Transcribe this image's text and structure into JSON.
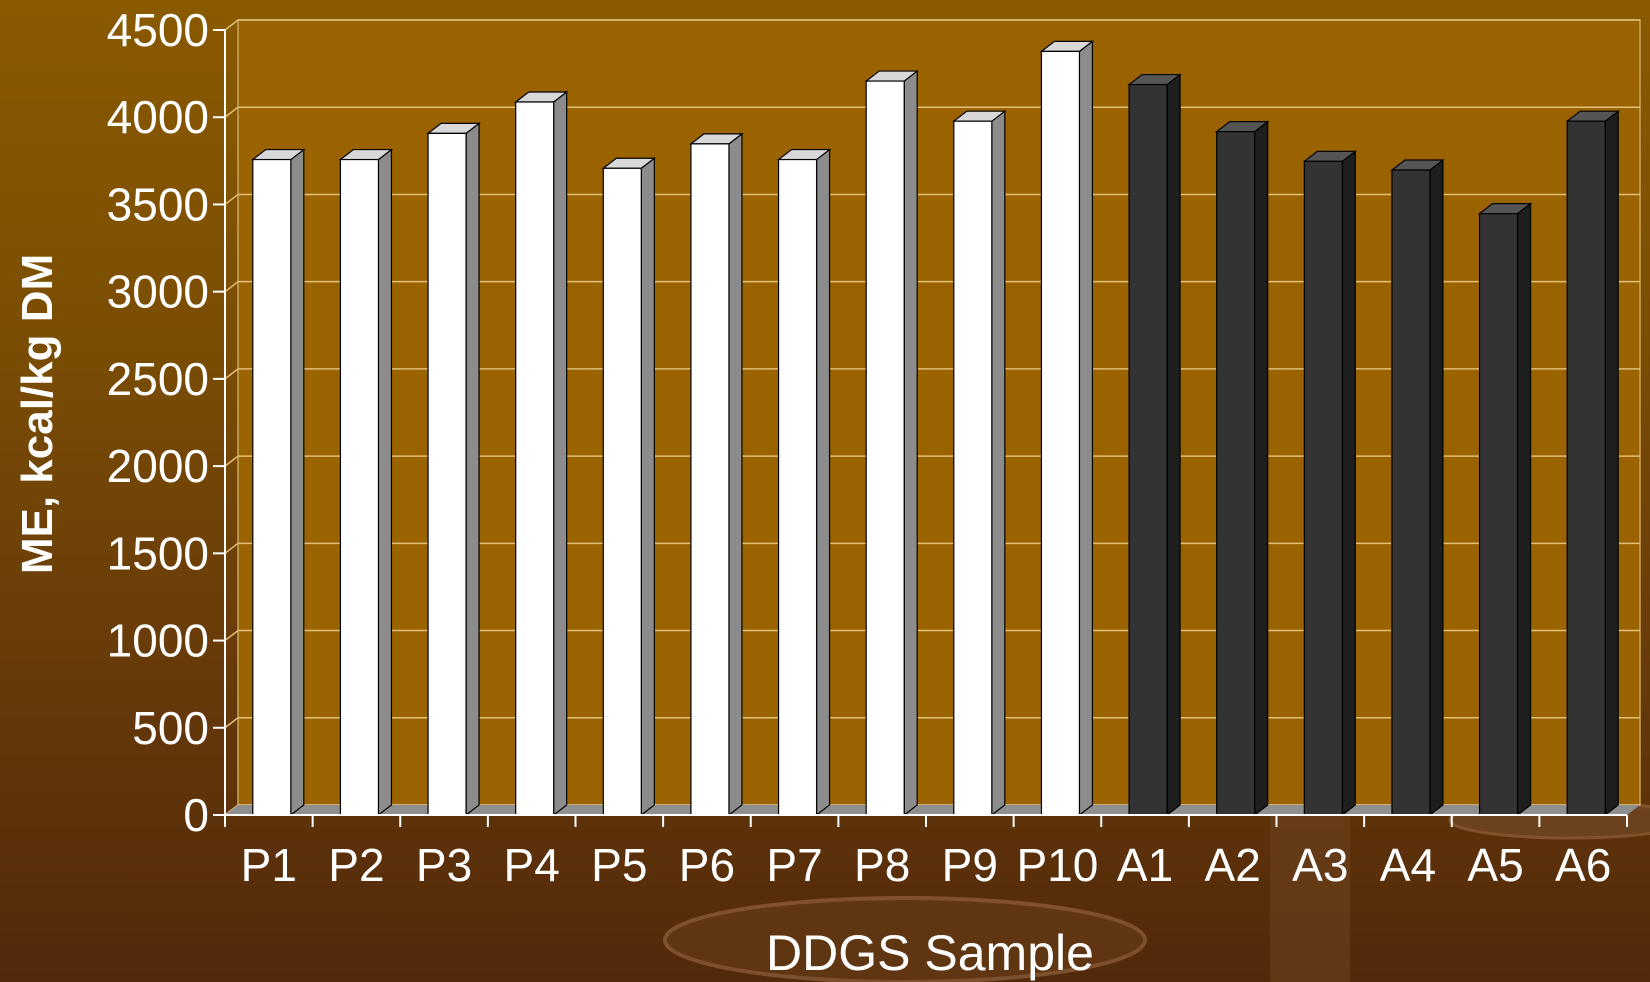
{
  "chart_data": {
    "type": "bar",
    "title": "",
    "xlabel": "DDGS Sample",
    "ylabel": "ME, kcal/kg DM",
    "ylim": [
      0,
      4500
    ],
    "yticks": [
      0,
      500,
      1000,
      1500,
      2000,
      2500,
      3000,
      3500,
      4000,
      4500
    ],
    "grid": true,
    "legend": "none",
    "categories": [
      "P1",
      "P2",
      "P3",
      "P4",
      "P5",
      "P6",
      "P7",
      "P8",
      "P9",
      "P10",
      "A1",
      "A2",
      "A3",
      "A4",
      "A5",
      "A6"
    ],
    "values": [
      3700,
      3700,
      3850,
      4030,
      3650,
      3790,
      3700,
      4150,
      3920,
      4320,
      4130,
      3860,
      3690,
      3640,
      3390,
      3920
    ],
    "bar_colors": [
      "#ffffff",
      "#ffffff",
      "#ffffff",
      "#ffffff",
      "#ffffff",
      "#ffffff",
      "#ffffff",
      "#ffffff",
      "#ffffff",
      "#ffffff",
      "#333333",
      "#333333",
      "#333333",
      "#333333",
      "#333333",
      "#333333"
    ],
    "colors": {
      "plot_background": "#9a6300",
      "gridline": "#e0c07a",
      "light_bar": "#ffffff",
      "dark_bar": "#333333"
    }
  }
}
